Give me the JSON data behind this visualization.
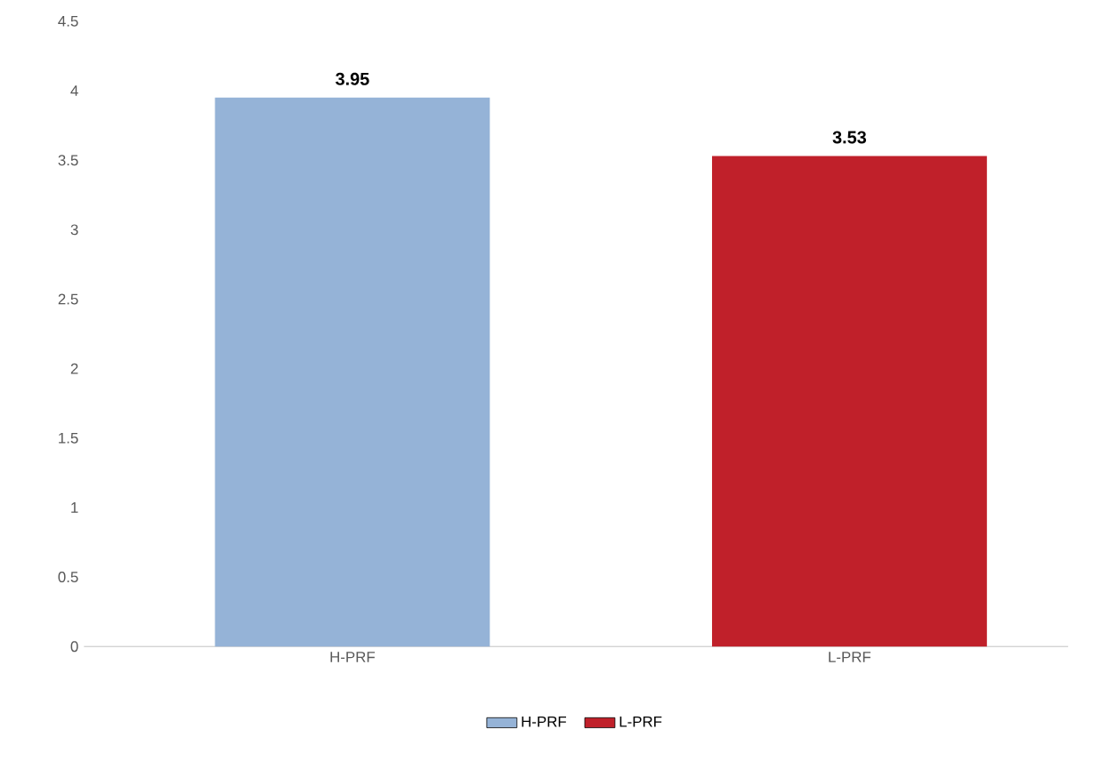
{
  "chart_data": {
    "type": "bar",
    "categories": [
      "H-PRF",
      "L-PRF"
    ],
    "series": [
      {
        "name": "H-PRF",
        "color": "#95b3d7",
        "values": [
          3.95,
          null
        ]
      },
      {
        "name": "L-PRF",
        "color": "#c0202a",
        "values": [
          null,
          3.53
        ]
      }
    ],
    "ylim": [
      0,
      4.5
    ],
    "yticks": [
      0,
      0.5,
      1,
      1.5,
      2,
      2.5,
      3,
      3.5,
      4,
      4.5
    ],
    "data_labels": true,
    "legend": "bottom",
    "grid": false
  }
}
